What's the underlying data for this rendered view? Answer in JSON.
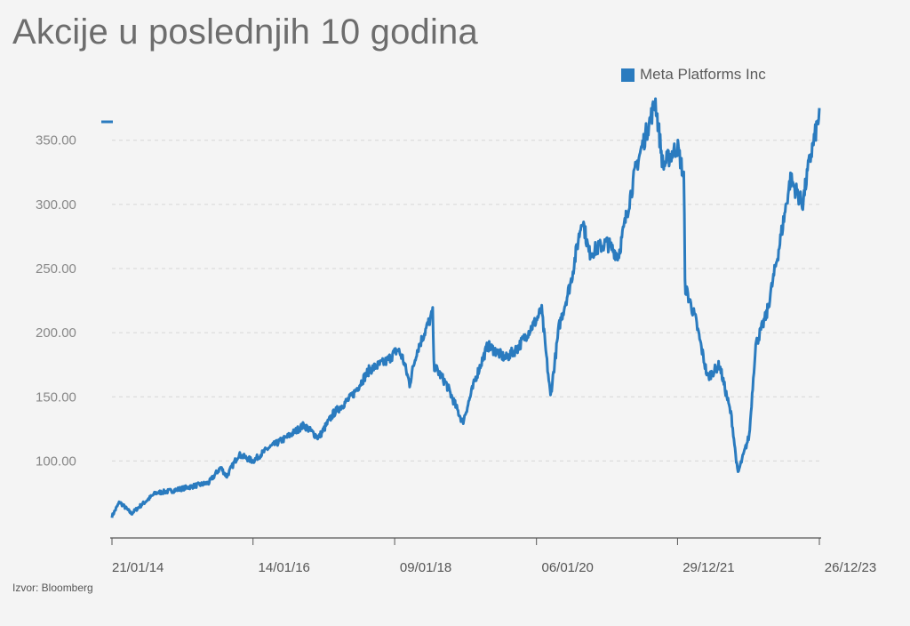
{
  "title": "Akcije u poslednjih 10 godina",
  "source": "Izvor: Bloomberg",
  "accent": "#2a7bbf",
  "chart_data": {
    "type": "line",
    "title": "Akcije u poslednjih 10 godina",
    "xlabel": "",
    "ylabel": "",
    "ylim": [
      40,
      390
    ],
    "y_ticks": [
      100,
      150,
      200,
      250,
      300,
      350
    ],
    "y_tick_labels": [
      "100.00",
      "150.00",
      "200.00",
      "250.00",
      "300.00",
      "350.00"
    ],
    "x_ticks": [
      "2014-01-21",
      "2016-01-14",
      "2018-01-09",
      "2020-01-06",
      "2021-12-29",
      "2023-12-26"
    ],
    "x_tick_labels": [
      "21/01/14",
      "14/01/16",
      "09/01/18",
      "06/01/20",
      "29/12/21",
      "26/12/23"
    ],
    "grid": true,
    "legend_position": "top-right",
    "series": [
      {
        "name": "Meta Platforms Inc",
        "color": "#2a7bbf",
        "x": [
          "2014-01-21",
          "2014-03-01",
          "2014-05-01",
          "2014-06-15",
          "2014-09-01",
          "2014-12-01",
          "2015-03-01",
          "2015-06-01",
          "2015-08-01",
          "2015-09-01",
          "2015-11-01",
          "2016-01-14",
          "2016-04-01",
          "2016-07-01",
          "2016-10-01",
          "2016-12-15",
          "2017-03-01",
          "2017-06-01",
          "2017-09-01",
          "2017-12-01",
          "2018-01-25",
          "2018-02-20",
          "2018-03-27",
          "2018-05-01",
          "2018-07-25",
          "2018-07-27",
          "2018-10-01",
          "2018-12-24",
          "2019-03-01",
          "2019-05-01",
          "2019-08-01",
          "2019-10-01",
          "2020-01-06",
          "2020-02-01",
          "2020-03-18",
          "2020-05-01",
          "2020-07-01",
          "2020-08-28",
          "2020-10-01",
          "2021-01-01",
          "2021-03-01",
          "2021-06-01",
          "2021-09-07",
          "2021-10-15",
          "2021-12-01",
          "2021-12-29",
          "2022-02-01",
          "2022-02-04",
          "2022-04-01",
          "2022-06-01",
          "2022-08-01",
          "2022-10-01",
          "2022-11-03",
          "2023-01-01",
          "2023-02-02",
          "2023-04-01",
          "2023-06-01",
          "2023-07-31",
          "2023-10-01",
          "2023-11-01",
          "2023-12-26"
        ],
        "values": [
          57,
          68,
          59,
          65,
          75,
          77,
          80,
          83,
          95,
          88,
          105,
          100,
          110,
          118,
          128,
          118,
          137,
          150,
          171,
          178,
          187,
          180,
          160,
          185,
          216,
          175,
          160,
          130,
          165,
          190,
          180,
          188,
          210,
          218,
          150,
          205,
          240,
          290,
          262,
          270,
          260,
          330,
          380,
          330,
          340,
          345,
          320,
          237,
          210,
          165,
          175,
          135,
          90,
          120,
          190,
          215,
          265,
          320,
          300,
          330,
          370
        ]
      }
    ]
  }
}
